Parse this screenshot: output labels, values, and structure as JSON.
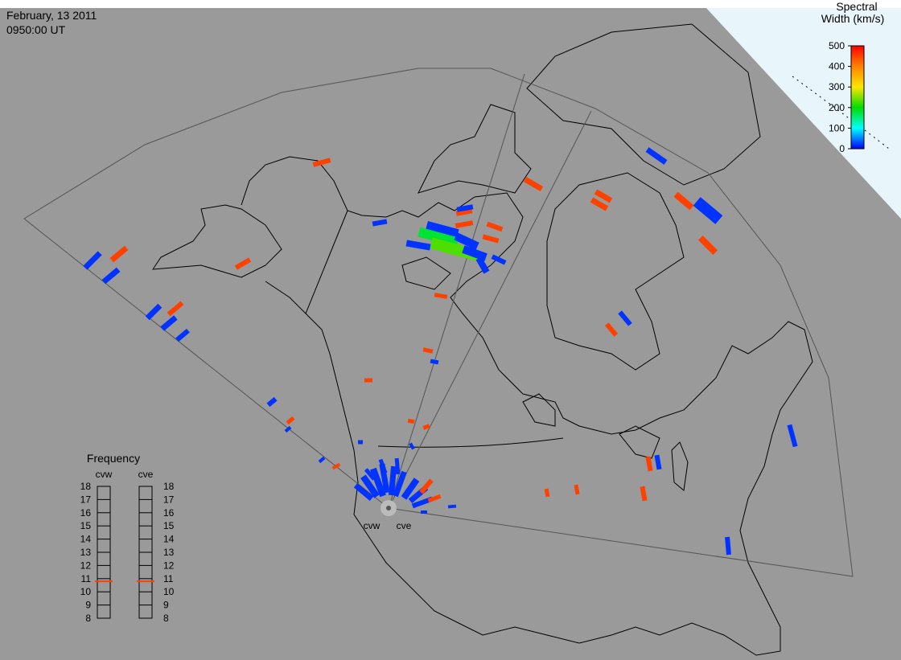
{
  "header": {
    "date": "February, 13 2011",
    "time": "0950:00 UT"
  },
  "colorbar": {
    "title_line1": "Spectral",
    "title_line2": "Width (km/s)",
    "ticks": [
      0,
      100,
      200,
      300,
      400,
      500
    ],
    "lim": [
      0,
      500
    ]
  },
  "frequency": {
    "title": "Frequency",
    "lim": [
      8,
      18
    ],
    "ticks": [
      8,
      9,
      10,
      11,
      12,
      13,
      14,
      15,
      16,
      17,
      18
    ],
    "radars": [
      {
        "name": "cvw",
        "value": 10.8
      },
      {
        "name": "cve",
        "value": 10.8
      }
    ]
  },
  "radar_labels": [
    "cvw",
    "cve"
  ],
  "echoes": [
    450,
    450,
    450,
    450,
    450,
    450,
    450,
    450,
    450,
    450,
    450,
    450,
    450,
    450,
    450,
    450,
    450,
    450,
    450,
    450,
    450,
    450,
    450,
    450,
    450,
    20,
    20,
    20,
    20,
    20,
    20,
    20,
    20,
    20,
    20,
    20,
    20,
    20,
    20,
    20,
    20,
    20,
    20,
    180,
    230,
    20,
    20,
    20,
    20,
    20,
    20,
    20,
    20,
    20,
    20,
    20,
    20,
    20,
    20,
    20,
    20,
    20,
    20,
    20,
    20,
    20,
    450,
    450
  ]
}
